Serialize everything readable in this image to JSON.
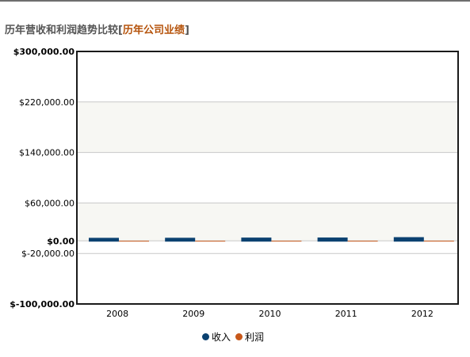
{
  "page": {
    "title_main": "历年营收和利润趋势比较",
    "title_bracket_open": "[",
    "title_link": "历年公司业绩",
    "title_bracket_close": "]"
  },
  "colors": {
    "revenue": "#0b4170",
    "profit": "#c8581a",
    "band": "#f7f7f3",
    "grid": "#c8c8c8",
    "frame": "#1a1a1a"
  },
  "chart_data": {
    "type": "bar",
    "categories": [
      "2008",
      "2009",
      "2010",
      "2011",
      "2012"
    ],
    "series": [
      {
        "name": "收入",
        "values": [
          3500,
          3600,
          3900,
          4000,
          4600
        ]
      },
      {
        "name": "利润",
        "values": [
          80,
          90,
          110,
          120,
          150
        ]
      }
    ],
    "ylim": [
      -100000,
      300000
    ],
    "yticks": [
      {
        "value": 300000,
        "label": "$300,000.00",
        "bold": true
      },
      {
        "value": 220000,
        "label": "$220,000.00",
        "bold": false
      },
      {
        "value": 140000,
        "label": "$140,000.00",
        "bold": false
      },
      {
        "value": 60000,
        "label": "$60,000.00",
        "bold": false
      },
      {
        "value": 0,
        "label": "$0.00",
        "bold": true
      },
      {
        "value": -20000,
        "label": "$-20,000.00",
        "bold": false
      },
      {
        "value": -100000,
        "label": "$-100,000.00",
        "bold": true
      }
    ],
    "bands": [
      [
        140000,
        220000
      ],
      [
        0,
        60000
      ]
    ],
    "grid": true,
    "legend_position": "bottom-center"
  }
}
